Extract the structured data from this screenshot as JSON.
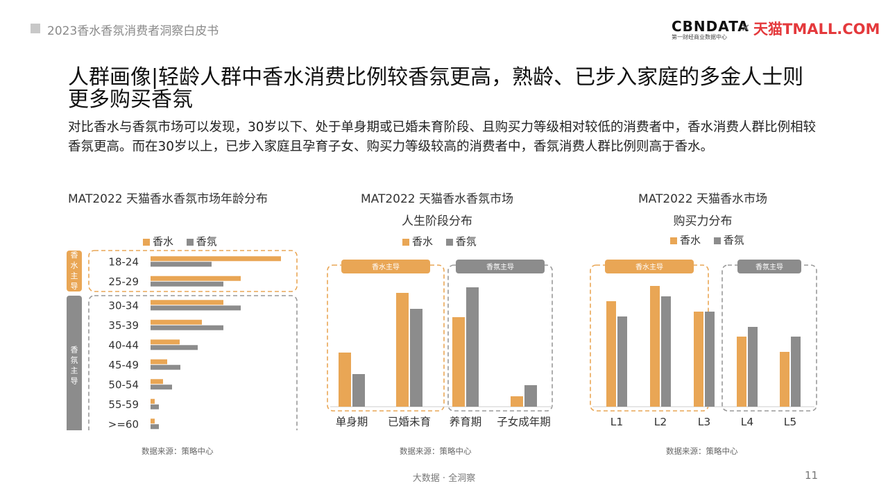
{
  "header": {
    "doc_title": "2023香水香氛消费者洞察白皮书",
    "logo_cbn": "CBNDATA",
    "logo_cbn_sub": "第一财经商业数据中心",
    "logo_x": "×",
    "logo_tmall": "天猫TMALL.COM"
  },
  "headline": "人群画像|轻龄人群中香水消费比例较香氛更高，熟龄、已步入家庭的多金人士则更多购买香氛",
  "subtitle": "对比香水与香氛市场可以发现，30岁以下、处于单身期或已婚未育阶段、且购买力等级相对较低的消费者中，香水消费人群比例相较香氛更高。而在30岁以上，已步入家庭且孕育子女、购买力等级较高的消费者中，香氛消费人群比例则高于香水。",
  "colors": {
    "perfume": "#E9A655",
    "fragrance": "#8C8C8C",
    "dash_perfume": "#E9A655",
    "dash_fragrance": "#999999"
  },
  "legend": {
    "perfume": "香水",
    "fragrance": "香氛"
  },
  "chart_data": [
    {
      "type": "bar",
      "orientation": "horizontal",
      "title": "MAT2022 天猫香水香氛市场年龄分布",
      "categories": [
        "18-24",
        "25-29",
        "30-34",
        "35-39",
        "40-44",
        "45-49",
        "50-54",
        "55-59",
        ">=60"
      ],
      "series": [
        {
          "name": "香水",
          "values": [
            188,
            130,
            105,
            74,
            42,
            24,
            18,
            6,
            6
          ]
        },
        {
          "name": "香氛",
          "values": [
            88,
            105,
            130,
            105,
            68,
            43,
            31,
            12,
            12
          ]
        }
      ],
      "groups": [
        {
          "label": "香水主导",
          "categories": [
            "18-24",
            "25-29"
          ]
        },
        {
          "label": "香氛主导",
          "categories": [
            "30-34",
            "35-39",
            "40-44",
            "45-49",
            "50-54",
            "55-59",
            ">=60"
          ]
        }
      ],
      "source": "数据来源：策略中心"
    },
    {
      "type": "bar",
      "title": "MAT2022 天猫香水香氛市场",
      "subtitle": "人生阶段分布",
      "categories": [
        "单身期",
        "已婚未育",
        "养育期",
        "子女成年期"
      ],
      "series": [
        {
          "name": "香水",
          "values": [
            78,
            164,
            129,
            15
          ]
        },
        {
          "name": "香氛",
          "values": [
            47,
            141,
            172,
            31
          ]
        }
      ],
      "groups": [
        {
          "label": "香水主导",
          "categories": [
            "单身期",
            "已婚未育"
          ]
        },
        {
          "label": "香氛主导",
          "categories": [
            "养育期",
            "子女成年期"
          ]
        }
      ],
      "source": "数据来源：策略中心"
    },
    {
      "type": "bar",
      "title": "MAT2022 天猫香水市场",
      "subtitle": "购买力分布",
      "categories": [
        "L1",
        "L2",
        "L3",
        "L4",
        "L5"
      ],
      "series": [
        {
          "name": "香水",
          "values": [
            152,
            174,
            137,
            101,
            79
          ]
        },
        {
          "name": "香氛",
          "values": [
            130,
            159,
            137,
            115,
            101
          ]
        }
      ],
      "groups": [
        {
          "label": "香水主导",
          "categories": [
            "L1",
            "L2",
            "L3"
          ]
        },
        {
          "label": "香氛主导",
          "categories": [
            "L4",
            "L5"
          ]
        }
      ],
      "source": "数据来源：策略中心"
    }
  ],
  "footer": {
    "text": "大数据 · 全洞察",
    "page": "11"
  }
}
